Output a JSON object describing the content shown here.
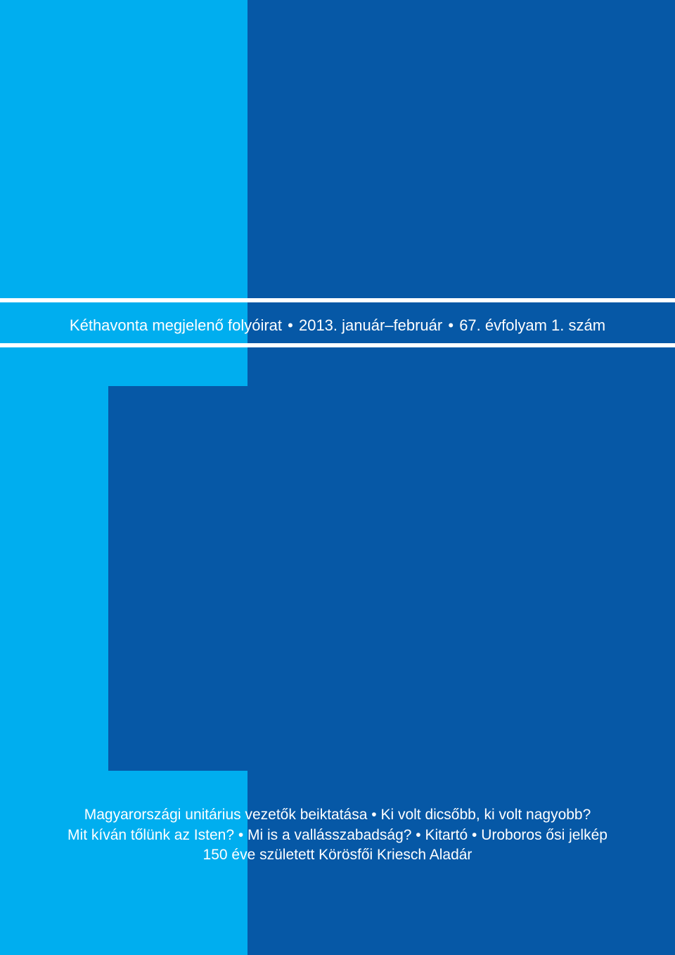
{
  "colors": {
    "background_dark": "#0658a6",
    "column_light": "#00aeef",
    "rule": "#ffffff",
    "text": "#ffffff"
  },
  "masthead": {
    "publication_type": "Kéthavonta megjelenő folyóirat",
    "separator": "•",
    "issue_date": "2013. január–február",
    "volume_issue": "67. évfolyam 1. szám"
  },
  "contents": {
    "lines": [
      "Magyarországi unitárius vezetők beiktatása • Ki volt dicsőbb, ki volt nagyobb?",
      "Mit kíván tőlünk az Isten? • Mi is a vallásszabadság? • Kitartó • Uroboros ősi jelkép",
      "150 éve született Körösfői Kriesch Aladár"
    ]
  }
}
